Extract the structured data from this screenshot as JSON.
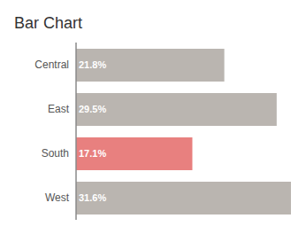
{
  "chart_data": {
    "type": "bar",
    "title": "Bar Chart",
    "orientation": "horizontal",
    "categories": [
      "Central",
      "East",
      "South",
      "West"
    ],
    "values": [
      21.8,
      29.5,
      17.1,
      31.6
    ],
    "value_labels": [
      "21.8%",
      "29.5%",
      "17.1%",
      "31.6%"
    ],
    "colors": [
      "#bab5b0",
      "#bab5b0",
      "#e8807f",
      "#bab5b0"
    ],
    "data_labels": true,
    "tick_labels": "y",
    "grid": false
  }
}
